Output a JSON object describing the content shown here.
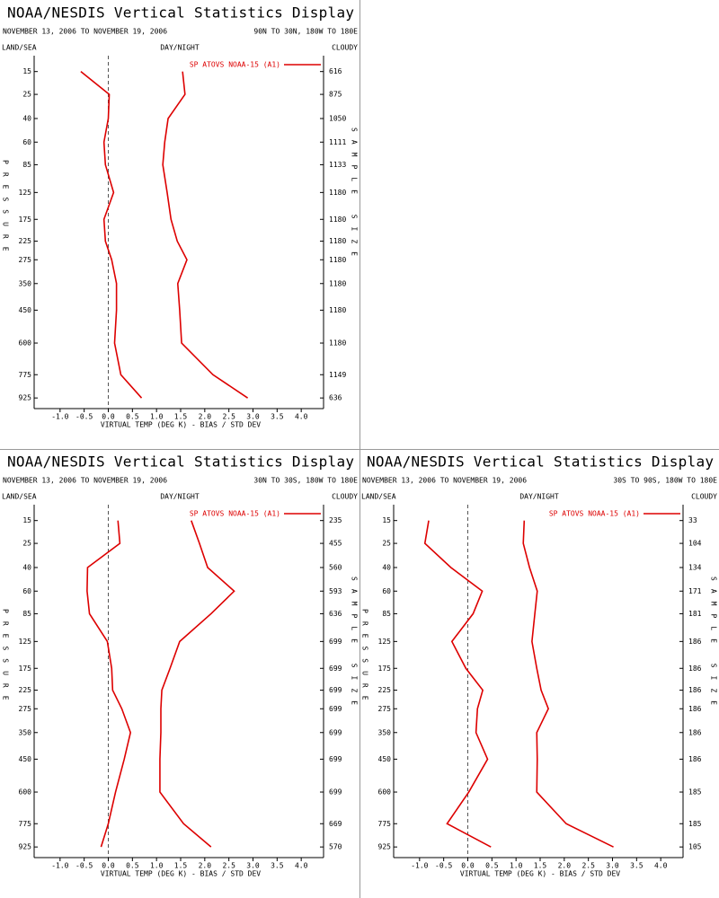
{
  "chart_data": [
    {
      "type": "line",
      "title": "NOAA/NESDIS Vertical Statistics Display",
      "date_range": "NOVEMBER 13, 2006 TO NOVEMBER 19, 2006",
      "region": "90N TO 30N, 180W TO 180E",
      "land_sea": "LAND/SEA",
      "day_night": "DAY/NIGHT",
      "cloudy": "CLOUDY",
      "ylabel": "PRESSURE",
      "y2label": "SAMPLE SIZE",
      "xlabel": "VIRTUAL TEMP (DEG K) - BIAS / STD DEV",
      "y": [
        15,
        25,
        40,
        60,
        85,
        125,
        175,
        225,
        275,
        350,
        450,
        600,
        775,
        925
      ],
      "sample_size": [
        616,
        875,
        1050,
        1111,
        1133,
        1180,
        1180,
        1180,
        1180,
        1180,
        1180,
        1180,
        1149,
        636
      ],
      "series": [
        {
          "name": "SP ATOVS NOAA-15 (A1)",
          "color": "#dd0000",
          "bias": [
            -0.57,
            0.02,
            0.0,
            -0.09,
            -0.06,
            0.11,
            -0.09,
            -0.06,
            0.07,
            0.17,
            0.17,
            0.13,
            0.26,
            0.69
          ],
          "std_dev": [
            1.54,
            1.59,
            1.24,
            1.17,
            1.13,
            1.22,
            1.3,
            1.43,
            1.63,
            1.44,
            1.48,
            1.52,
            2.17,
            2.89
          ]
        }
      ],
      "xlim": [
        -1.5,
        4.5
      ],
      "xticks": [
        {
          "value": -1,
          "label": "-1.0"
        },
        -0.5,
        {
          "value": 0,
          "label": "0.0"
        },
        0.5,
        {
          "value": 1,
          "label": "1.0"
        },
        1.5,
        {
          "value": 2,
          "label": "2.0"
        },
        2.5,
        {
          "value": 3,
          "label": "3.0"
        },
        3.5,
        {
          "value": 4,
          "label": "4.0"
        }
      ],
      "ylim": [
        10,
        1000
      ],
      "yscale_exponent": 0.286,
      "yticks": [
        15,
        25,
        40,
        60,
        85,
        125,
        175,
        225,
        275,
        350,
        450,
        600,
        775,
        925
      ],
      "zero_line": true
    },
    {
      "type": "line",
      "title": "NOAA/NESDIS Vertical Statistics Display",
      "date_range": "NOVEMBER 13, 2006 TO NOVEMBER 19, 2006",
      "region": "30N TO 30S, 180W TO 180E",
      "land_sea": "LAND/SEA",
      "day_night": "DAY/NIGHT",
      "cloudy": "CLOUDY",
      "ylabel": "PRESSURE",
      "y2label": "SAMPLE SIZE",
      "xlabel": "VIRTUAL TEMP (DEG K) - BIAS / STD DEV",
      "y": [
        15,
        25,
        40,
        60,
        85,
        125,
        175,
        225,
        275,
        350,
        450,
        600,
        775,
        925
      ],
      "sample_size": [
        235,
        455,
        560,
        593,
        636,
        699,
        699,
        699,
        699,
        699,
        699,
        699,
        669,
        570
      ],
      "series": [
        {
          "name": "SP ATOVS NOAA-15 (A1)",
          "color": "#dd0000",
          "bias": [
            0.2,
            0.24,
            -0.43,
            -0.44,
            -0.39,
            -0.02,
            0.07,
            0.09,
            0.28,
            0.46,
            0.33,
            0.15,
            0.0,
            -0.15
          ],
          "std_dev": [
            1.72,
            1.89,
            2.06,
            2.61,
            2.13,
            1.48,
            1.28,
            1.11,
            1.09,
            1.09,
            1.07,
            1.07,
            1.56,
            2.13
          ]
        }
      ],
      "xlim": [
        -1.5,
        4.5
      ],
      "xticks": [
        {
          "value": -1,
          "label": "-1.0"
        },
        -0.5,
        {
          "value": 0,
          "label": "0.0"
        },
        0.5,
        {
          "value": 1,
          "label": "1.0"
        },
        1.5,
        {
          "value": 2,
          "label": "2.0"
        },
        2.5,
        {
          "value": 3,
          "label": "3.0"
        },
        3.5,
        {
          "value": 4,
          "label": "4.0"
        }
      ],
      "ylim": [
        10,
        1000
      ],
      "yscale_exponent": 0.286,
      "yticks": [
        15,
        25,
        40,
        60,
        85,
        125,
        175,
        225,
        275,
        350,
        450,
        600,
        775,
        925
      ],
      "zero_line": true
    },
    {
      "type": "line",
      "title": "NOAA/NESDIS Vertical Statistics Display",
      "date_range": "NOVEMBER 13, 2006 TO NOVEMBER 19, 2006",
      "region": "30S TO 90S, 180W TO 180E",
      "land_sea": "LAND/SEA",
      "day_night": "DAY/NIGHT",
      "cloudy": "CLOUDY",
      "ylabel": "PRESSURE",
      "y2label": "SAMPLE SIZE",
      "xlabel": "VIRTUAL TEMP (DEG K) - BIAS / STD DEV",
      "y": [
        15,
        25,
        40,
        60,
        85,
        125,
        175,
        225,
        275,
        350,
        450,
        600,
        775,
        925
      ],
      "sample_size": [
        33,
        104,
        134,
        171,
        181,
        186,
        186,
        186,
        186,
        186,
        186,
        185,
        185,
        105
      ],
      "series": [
        {
          "name": "SP ATOVS NOAA-15 (A1)",
          "color": "#dd0000",
          "bias": [
            -0.81,
            -0.89,
            -0.35,
            0.3,
            0.11,
            -0.33,
            -0.04,
            0.31,
            0.2,
            0.17,
            0.41,
            0.02,
            -0.43,
            0.48
          ],
          "std_dev": [
            1.17,
            1.15,
            1.28,
            1.44,
            1.39,
            1.33,
            1.43,
            1.52,
            1.67,
            1.43,
            1.44,
            1.43,
            2.04,
            3.02
          ]
        }
      ],
      "xlim": [
        -1.5,
        4.5
      ],
      "xticks": [
        {
          "value": -1,
          "label": "-1.0"
        },
        -0.5,
        {
          "value": 0,
          "label": "0.0"
        },
        0.5,
        {
          "value": 1,
          "label": "1.0"
        },
        1.5,
        {
          "value": 2,
          "label": "2.0"
        },
        2.5,
        {
          "value": 3,
          "label": "3.0"
        },
        3.5,
        {
          "value": 4,
          "label": "4.0"
        }
      ],
      "ylim": [
        10,
        1000
      ],
      "yscale_exponent": 0.286,
      "yticks": [
        15,
        25,
        40,
        60,
        85,
        125,
        175,
        225,
        275,
        350,
        450,
        600,
        775,
        925
      ],
      "zero_line": true
    }
  ]
}
